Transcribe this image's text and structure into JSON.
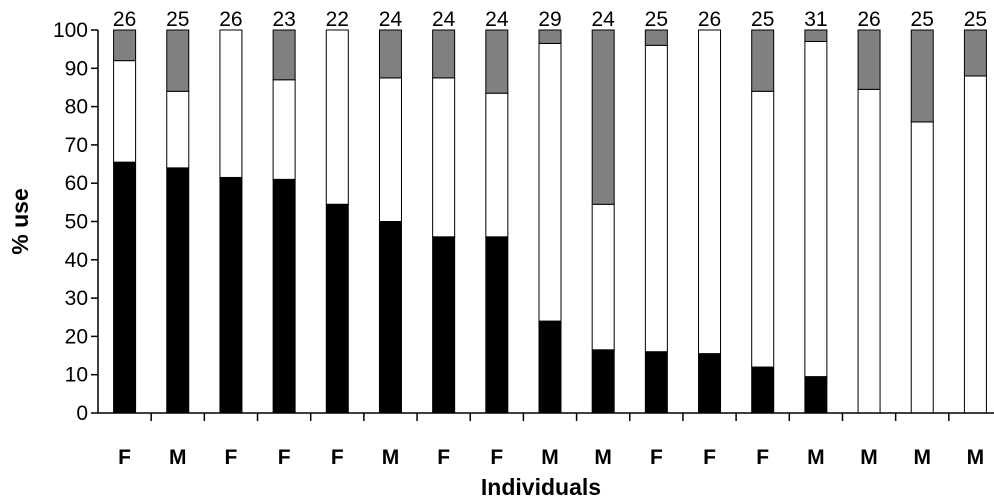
{
  "chart_data": {
    "type": "bar",
    "stacked": true,
    "categories": [
      "F",
      "M",
      "F",
      "F",
      "F",
      "M",
      "F",
      "F",
      "M",
      "M",
      "F",
      "F",
      "F",
      "M",
      "M",
      "M",
      "M"
    ],
    "sample_sizes": [
      "26",
      "25",
      "26",
      "23",
      "22",
      "24",
      "24",
      "24",
      "29",
      "24",
      "25",
      "26",
      "25",
      "31",
      "26",
      "25",
      "25"
    ],
    "series": [
      {
        "values": [
          65.5,
          64,
          61.5,
          61,
          54.5,
          50,
          46,
          46,
          24,
          16.5,
          16,
          15.5,
          12,
          9.5,
          0,
          0,
          0
        ],
        "color": "#000000"
      },
      {
        "values": [
          26.5,
          20,
          38.5,
          26,
          45.5,
          37.5,
          41.5,
          37.5,
          72.5,
          38,
          80,
          84.5,
          72,
          87.5,
          84.5,
          76,
          88
        ],
        "color": "#ffffff"
      },
      {
        "values": [
          8,
          16,
          0,
          13,
          0,
          12.5,
          12.5,
          16.5,
          3.5,
          45.5,
          4,
          0,
          16,
          3,
          15.5,
          24,
          12
        ],
        "color": "#808080"
      }
    ],
    "xlabel": "Individuals",
    "ylabel": "% use",
    "ylim": [
      0,
      100
    ],
    "yticks": [
      "0",
      "10",
      "20",
      "30",
      "40",
      "50",
      "60",
      "70",
      "80",
      "90",
      "100"
    ],
    "grid": false,
    "legend": "none"
  }
}
